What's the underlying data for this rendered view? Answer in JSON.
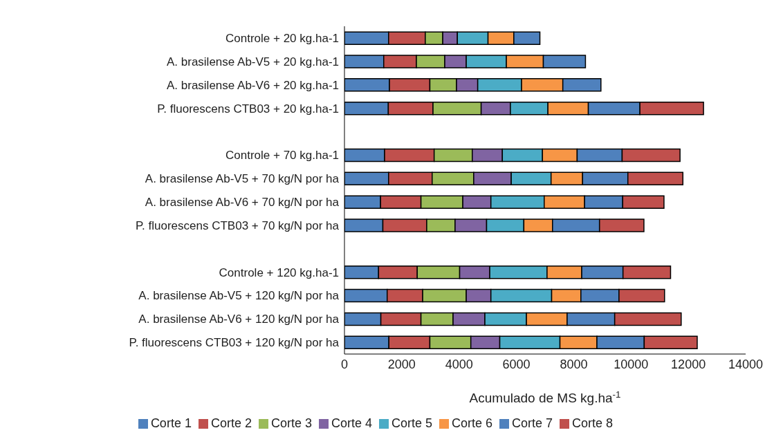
{
  "chart_data": {
    "type": "bar",
    "orientation": "horizontal",
    "stacked": true,
    "xlabel": "Acumulado de MS kg.ha$^{-1}$",
    "categories": [
      "Controle + 20 kg.ha-1",
      "A. brasilense Ab-V5 + 20 kg.ha-1",
      "A. brasilense Ab-V6 + 20 kg.ha-1",
      "P. fluorescens CTB03 + 20 kg.ha-1",
      null,
      "Controle + 70 kg.ha-1",
      "A. brasilense Ab-V5 + 70 kg/N por ha",
      "A. brasilense Ab-V6 + 70 kg/N por ha",
      "P. fluorescens CTB03 + 70 kg/N por ha",
      null,
      "Controle + 120 kg.ha-1",
      "A. brasilense Ab-V5 + 120 kg/N por ha",
      "A. brasilense Ab-V6 + 120 kg/N por ha",
      "P. fluorescens CTB03 + 120 kg/N por ha"
    ],
    "series": [
      {
        "name": "Corte 1",
        "color": "#4f81bd",
        "values": [
          1540,
          1370,
          1570,
          1530,
          null,
          1400,
          1540,
          1260,
          1340,
          null,
          1190,
          1490,
          1270,
          1550
        ]
      },
      {
        "name": "Corte 2",
        "color": "#c0504d",
        "values": [
          1280,
          1140,
          1410,
          1560,
          null,
          1730,
          1520,
          1410,
          1530,
          null,
          1350,
          1240,
          1400,
          1430
        ]
      },
      {
        "name": "Corte 3",
        "color": "#9bbb59",
        "values": [
          610,
          990,
          930,
          1680,
          null,
          1330,
          1450,
          1460,
          990,
          null,
          1480,
          1520,
          1120,
          1430
        ]
      },
      {
        "name": "Corte 4",
        "color": "#8064a2",
        "values": [
          510,
          750,
          740,
          1020,
          null,
          1050,
          1310,
          980,
          1100,
          null,
          1050,
          860,
          1110,
          1010
        ]
      },
      {
        "name": "Corte 5",
        "color": "#4bacc6",
        "values": [
          1070,
          1400,
          1530,
          1310,
          null,
          1400,
          1390,
          1860,
          1300,
          null,
          2000,
          2120,
          1450,
          2100
        ]
      },
      {
        "name": "Corte 6",
        "color": "#f79646",
        "values": [
          900,
          1290,
          1440,
          1410,
          null,
          1210,
          1100,
          1410,
          1000,
          null,
          1210,
          1020,
          1420,
          1290
        ]
      },
      {
        "name": "Corte 7",
        "color": "#4f81bd",
        "values": [
          910,
          1470,
          1330,
          1800,
          null,
          1570,
          1580,
          1330,
          1640,
          null,
          1440,
          1330,
          1660,
          1650
        ]
      },
      {
        "name": "Corte 8",
        "color": "#c0504d",
        "values": [
          null,
          null,
          null,
          2220,
          null,
          2020,
          1920,
          1440,
          1550,
          null,
          1660,
          1590,
          2320,
          1850
        ]
      }
    ],
    "xlim": [
      0,
      14000
    ],
    "xticks": [
      0,
      2000,
      4000,
      6000,
      8000,
      10000,
      12000,
      14000
    ],
    "grid": false,
    "legend": "bottom"
  }
}
